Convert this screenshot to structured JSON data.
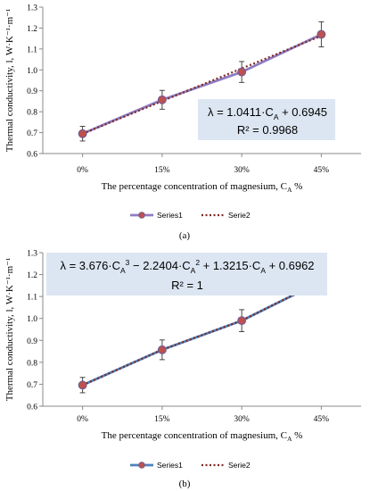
{
  "chart_data": [
    {
      "type": "line",
      "panel_label": "(a)",
      "categories": [
        "0%",
        "15%",
        "30%",
        "45%"
      ],
      "series": [
        {
          "name": "Series1",
          "values": [
            0.695,
            0.857,
            0.99,
            1.17
          ],
          "error": [
            0.035,
            0.045,
            0.05,
            0.06
          ],
          "color": "#8e7cc3",
          "marker_color": "#c0504d",
          "style": "solid"
        },
        {
          "name": "Serie2",
          "values": [
            0.6945,
            0.8507,
            1.0068,
            1.163
          ],
          "color": "#7f2a24",
          "style": "dotted"
        }
      ],
      "ylim": [
        0.6,
        1.3
      ],
      "yticks": [
        "0.6",
        "0.7",
        "0.8",
        "0.9",
        "1.0",
        "1.1",
        "1.2",
        "1.3"
      ],
      "ylabel": "Thermal conductivity, l, W·K⁻¹·m⁻¹",
      "xlabel": "The percentage concentration of magnesium, C",
      "xlabel_sub": "A",
      "xlabel_tail": " %",
      "equation_lines": [
        [
          {
            "t": "λ = 1.0411·C"
          },
          {
            "sub": "A"
          },
          {
            "t": " + 0.6945"
          }
        ],
        [
          {
            "t": "R² = 0.9968"
          }
        ]
      ],
      "legend": "bottom",
      "grid": false
    },
    {
      "type": "line",
      "panel_label": "(b)",
      "categories": [
        "0%",
        "15%",
        "30%",
        "45%"
      ],
      "series": [
        {
          "name": "Series1",
          "values": [
            0.6962,
            0.857,
            0.99,
            1.17
          ],
          "error": [
            0.035,
            0.045,
            0.05,
            0.06
          ],
          "color": "#4f81bd",
          "marker_color": "#c0504d",
          "style": "solid"
        },
        {
          "name": "Serie2",
          "values": [
            0.6962,
            0.8573,
            0.9902,
            1.1699
          ],
          "color": "#7f2a24",
          "style": "dotted"
        }
      ],
      "ylim": [
        0.6,
        1.3
      ],
      "yticks": [
        "0.6",
        "0.7",
        "0.8",
        "0.9",
        "1.0",
        "1.1",
        "1.2",
        "1.3"
      ],
      "ylabel": "Thermal conductivity, l, W·K⁻¹·m⁻¹",
      "xlabel": "The percentage concentration of magnesium, C",
      "xlabel_sub": "A",
      "xlabel_tail": " %",
      "equation_lines": [
        [
          {
            "t": "λ = 3.676·C"
          },
          {
            "sub": "A"
          },
          {
            "sup": "3"
          },
          {
            "t": " − 2.2404·C"
          },
          {
            "sub": "A"
          },
          {
            "sup": "2"
          },
          {
            "t": " + 1.3215·C"
          },
          {
            "sub": "A"
          },
          {
            "t": " + 0.6962"
          }
        ],
        [
          {
            "t": "R² = 1"
          }
        ]
      ],
      "legend": "bottom",
      "grid": false
    }
  ]
}
